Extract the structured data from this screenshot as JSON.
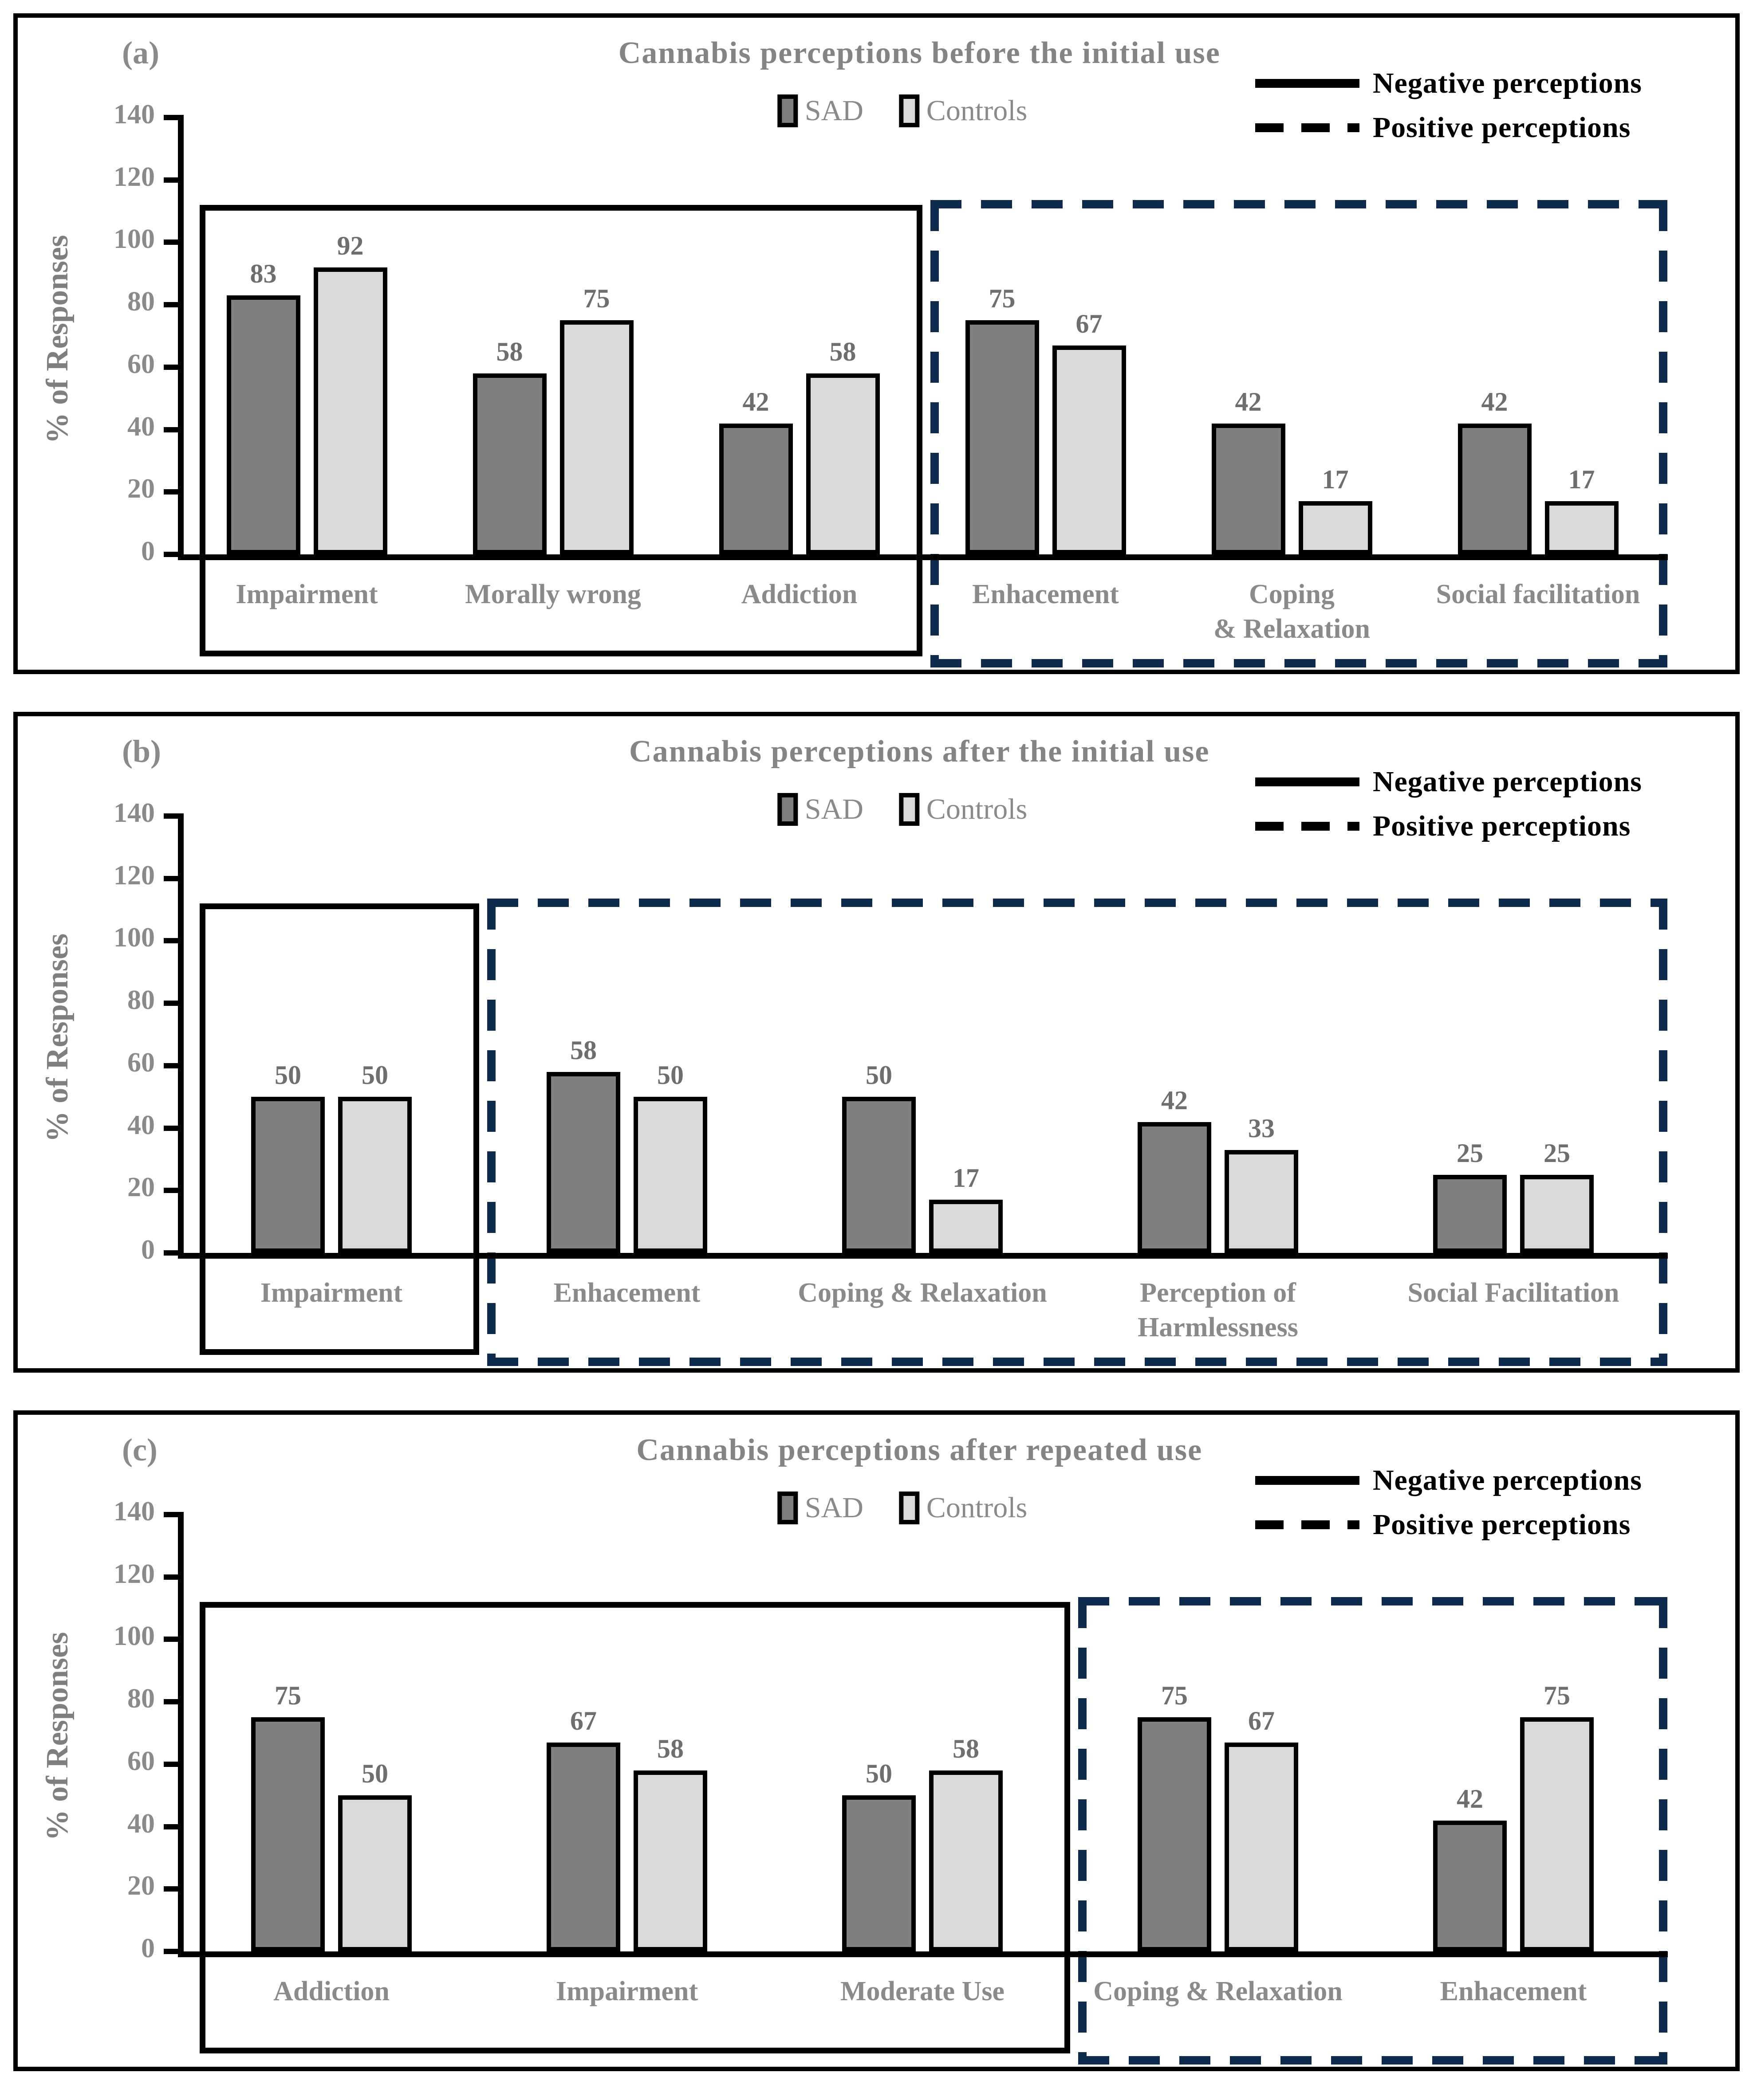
{
  "figure": {
    "series_names": [
      "SAD",
      "Controls"
    ],
    "line_legend": [
      {
        "style": "solid",
        "label": "Negative perceptions"
      },
      {
        "style": "dashed",
        "label": "Positive perceptions"
      }
    ],
    "colors": {
      "sad_fill": "#7f7f7f",
      "controls_fill": "#d9d9d9",
      "bar_border": "#000000",
      "negative_box": "#000000",
      "positive_box": "#0e2a4d",
      "title_text": "#848484",
      "label_text": "#8a8a8a",
      "value_text": "#6e6e6e"
    }
  },
  "chart_data": [
    {
      "type": "bar",
      "panel_label": "(a)",
      "title": "Cannabis perceptions before the initial use",
      "ylabel": "% of Responses",
      "ylim": [
        0,
        140
      ],
      "yticks": [
        0,
        20,
        40,
        60,
        80,
        100,
        120,
        140
      ],
      "grid": false,
      "legend_position": "top-center series swatches; top-right perception line legend",
      "categories": [
        "Impairment",
        "Morally wrong",
        "Addiction",
        "Enhacement",
        "Coping\n& Relaxation",
        "Social facilitation"
      ],
      "series": [
        {
          "name": "SAD",
          "values": [
            83,
            58,
            42,
            75,
            42,
            42
          ]
        },
        {
          "name": "Controls",
          "values": [
            92,
            75,
            58,
            67,
            17,
            17
          ]
        }
      ],
      "negative_perception_indices": [
        0,
        1,
        2
      ],
      "positive_perception_indices": [
        3,
        4,
        5
      ]
    },
    {
      "type": "bar",
      "panel_label": "(b)",
      "title": "Cannabis perceptions after the initial use",
      "ylabel": "% of Responses",
      "ylim": [
        0,
        140
      ],
      "yticks": [
        0,
        20,
        40,
        60,
        80,
        100,
        120,
        140
      ],
      "grid": false,
      "legend_position": "top-center series swatches; top-right perception line legend",
      "categories": [
        "Impairment",
        "Enhacement",
        "Coping & Relaxation",
        "Perception of\nHarmlessness",
        "Social Facilitation"
      ],
      "series": [
        {
          "name": "SAD",
          "values": [
            50,
            58,
            50,
            42,
            25
          ]
        },
        {
          "name": "Controls",
          "values": [
            50,
            50,
            17,
            33,
            25
          ]
        }
      ],
      "negative_perception_indices": [
        0
      ],
      "positive_perception_indices": [
        1,
        2,
        3,
        4
      ]
    },
    {
      "type": "bar",
      "panel_label": "(c)",
      "title": "Cannabis perceptions after repeated use",
      "ylabel": "% of Responses",
      "ylim": [
        0,
        140
      ],
      "yticks": [
        0,
        20,
        40,
        60,
        80,
        100,
        120,
        140
      ],
      "grid": false,
      "legend_position": "top-center series swatches; top-right perception line legend",
      "categories": [
        "Addiction",
        "Impairment",
        "Moderate Use",
        "Coping & Relaxation",
        "Enhacement"
      ],
      "series": [
        {
          "name": "SAD",
          "values": [
            75,
            67,
            50,
            75,
            42
          ]
        },
        {
          "name": "Controls",
          "values": [
            50,
            58,
            58,
            67,
            75
          ]
        }
      ],
      "negative_perception_indices": [
        0,
        1,
        2
      ],
      "positive_perception_indices": [
        3,
        4
      ]
    }
  ]
}
